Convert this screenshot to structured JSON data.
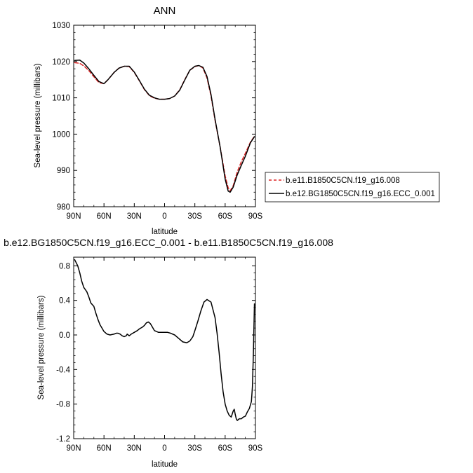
{
  "chart_data": [
    {
      "type": "line",
      "title": "ANN",
      "xlabel": "latitude",
      "ylabel": "Sea-level pressure (millibars)",
      "xlim": [
        90,
        -90
      ],
      "ylim": [
        980,
        1030
      ],
      "x_ticks": [
        90,
        60,
        30,
        0,
        -30,
        -60,
        -90
      ],
      "x_tick_labels": [
        "90N",
        "60N",
        "30N",
        "0",
        "30S",
        "60S",
        "90S"
      ],
      "y_ticks": [
        980,
        990,
        1000,
        1010,
        1020,
        1030
      ],
      "y_tick_labels": [
        "980",
        "990",
        "1000",
        "1010",
        "1020",
        "1030"
      ],
      "grid": false,
      "legend_position": "right",
      "series": [
        {
          "name": "b.e11.B1850C5CN.f19_g16.008",
          "color": "#dd2222",
          "dash": "dashed",
          "x": [
            89,
            84,
            80,
            75,
            70,
            65,
            60,
            56,
            50,
            45,
            40,
            35,
            30,
            25,
            20,
            15,
            10,
            5,
            0,
            -5,
            -10,
            -15,
            -20,
            -25,
            -30,
            -34,
            -38,
            -42,
            -46,
            -50,
            -55,
            -60,
            -63,
            -65,
            -68,
            -72,
            -76,
            -80,
            -85,
            -89
          ],
          "y": [
            1019.7,
            1019.5,
            1018.8,
            1017.5,
            1015.8,
            1014.2,
            1013.9,
            1015.0,
            1017.0,
            1018.2,
            1018.7,
            1018.6,
            1017.0,
            1014.7,
            1012.3,
            1010.6,
            1009.9,
            1009.6,
            1009.6,
            1009.8,
            1010.5,
            1012.2,
            1015.0,
            1017.6,
            1018.6,
            1018.9,
            1018.2,
            1015.5,
            1010.5,
            1003.8,
            996.5,
            988.5,
            985.2,
            984.4,
            985.8,
            989.6,
            992.4,
            994.7,
            997.8,
            999.4
          ]
        },
        {
          "name": "b.e12.BG1850C5CN.f19_g16.ECC_0.001",
          "color": "#000000",
          "dash": "solid",
          "x": [
            89,
            84,
            80,
            75,
            70,
            65,
            60,
            56,
            50,
            45,
            40,
            35,
            30,
            25,
            20,
            15,
            10,
            5,
            0,
            -5,
            -10,
            -15,
            -20,
            -25,
            -30,
            -34,
            -38,
            -42,
            -46,
            -50,
            -55,
            -60,
            -63,
            -65,
            -68,
            -72,
            -76,
            -80,
            -85,
            -89
          ],
          "y": [
            1020.3,
            1020.4,
            1019.6,
            1018.0,
            1016.2,
            1014.5,
            1013.9,
            1015.0,
            1017.0,
            1018.2,
            1018.7,
            1018.7,
            1017.1,
            1014.8,
            1012.4,
            1010.7,
            1010.0,
            1009.6,
            1009.6,
            1009.8,
            1010.5,
            1012.1,
            1014.9,
            1017.6,
            1018.7,
            1018.9,
            1018.4,
            1015.9,
            1010.9,
            1004.1,
            996.5,
            987.6,
            984.3,
            984.0,
            985.4,
            988.8,
            991.4,
            993.9,
            997.6,
            999.3
          ]
        }
      ]
    },
    {
      "type": "line",
      "title": "b.e12.BG1850C5CN.f19_g16.ECC_0.001 - b.e11.B1850C5CN.f19_g16.008",
      "xlabel": "latitude",
      "ylabel": "Sea-level pressure (millibars)",
      "xlim": [
        90,
        -90
      ],
      "ylim": [
        -1.2,
        0.9
      ],
      "x_ticks": [
        90,
        60,
        30,
        0,
        -30,
        -60,
        -90
      ],
      "x_tick_labels": [
        "90N",
        "60N",
        "30N",
        "0",
        "30S",
        "60S",
        "90S"
      ],
      "y_ticks": [
        -1.2,
        -0.8,
        -0.4,
        0.0,
        0.4,
        0.8
      ],
      "y_tick_labels": [
        "-1.2",
        "-0.8",
        "-0.4",
        "0.0",
        "0.4",
        "0.8"
      ],
      "grid": false,
      "series": [
        {
          "color": "#000000",
          "dash": "solid",
          "x": [
            89,
            86,
            84,
            82,
            80,
            77,
            75,
            73,
            70,
            68,
            66,
            64,
            62,
            60,
            57,
            54,
            50,
            48,
            46,
            44,
            42,
            40,
            38,
            37,
            36,
            35,
            33,
            30,
            27,
            25,
            22,
            20,
            18,
            16,
            14,
            12,
            10,
            8,
            6,
            3,
            0,
            -3,
            -6,
            -10,
            -14,
            -18,
            -22,
            -25,
            -28,
            -30,
            -33,
            -36,
            -39,
            -42,
            -46,
            -50,
            -52,
            -54,
            -56,
            -58,
            -60,
            -62,
            -64,
            -66,
            -68,
            -69,
            -70,
            -71,
            -72,
            -74,
            -76,
            -78,
            -80,
            -82,
            -84,
            -86,
            -87,
            -88,
            -89
          ],
          "y": [
            0.87,
            0.8,
            0.72,
            0.62,
            0.55,
            0.5,
            0.44,
            0.37,
            0.33,
            0.25,
            0.18,
            0.12,
            0.08,
            0.04,
            0.01,
            0.0,
            0.01,
            0.02,
            0.02,
            0.01,
            -0.01,
            -0.02,
            -0.01,
            0.01,
            0.0,
            -0.01,
            0.01,
            0.03,
            0.05,
            0.07,
            0.09,
            0.11,
            0.14,
            0.15,
            0.13,
            0.09,
            0.05,
            0.04,
            0.03,
            0.03,
            0.03,
            0.03,
            0.02,
            0.0,
            -0.04,
            -0.08,
            -0.09,
            -0.07,
            -0.02,
            0.05,
            0.16,
            0.28,
            0.38,
            0.41,
            0.38,
            0.2,
            0.02,
            -0.2,
            -0.45,
            -0.66,
            -0.8,
            -0.88,
            -0.93,
            -0.95,
            -0.88,
            -0.86,
            -0.92,
            -0.97,
            -0.99,
            -0.97,
            -0.97,
            -0.95,
            -0.94,
            -0.89,
            -0.85,
            -0.77,
            -0.6,
            -0.2,
            0.36
          ]
        }
      ]
    }
  ]
}
